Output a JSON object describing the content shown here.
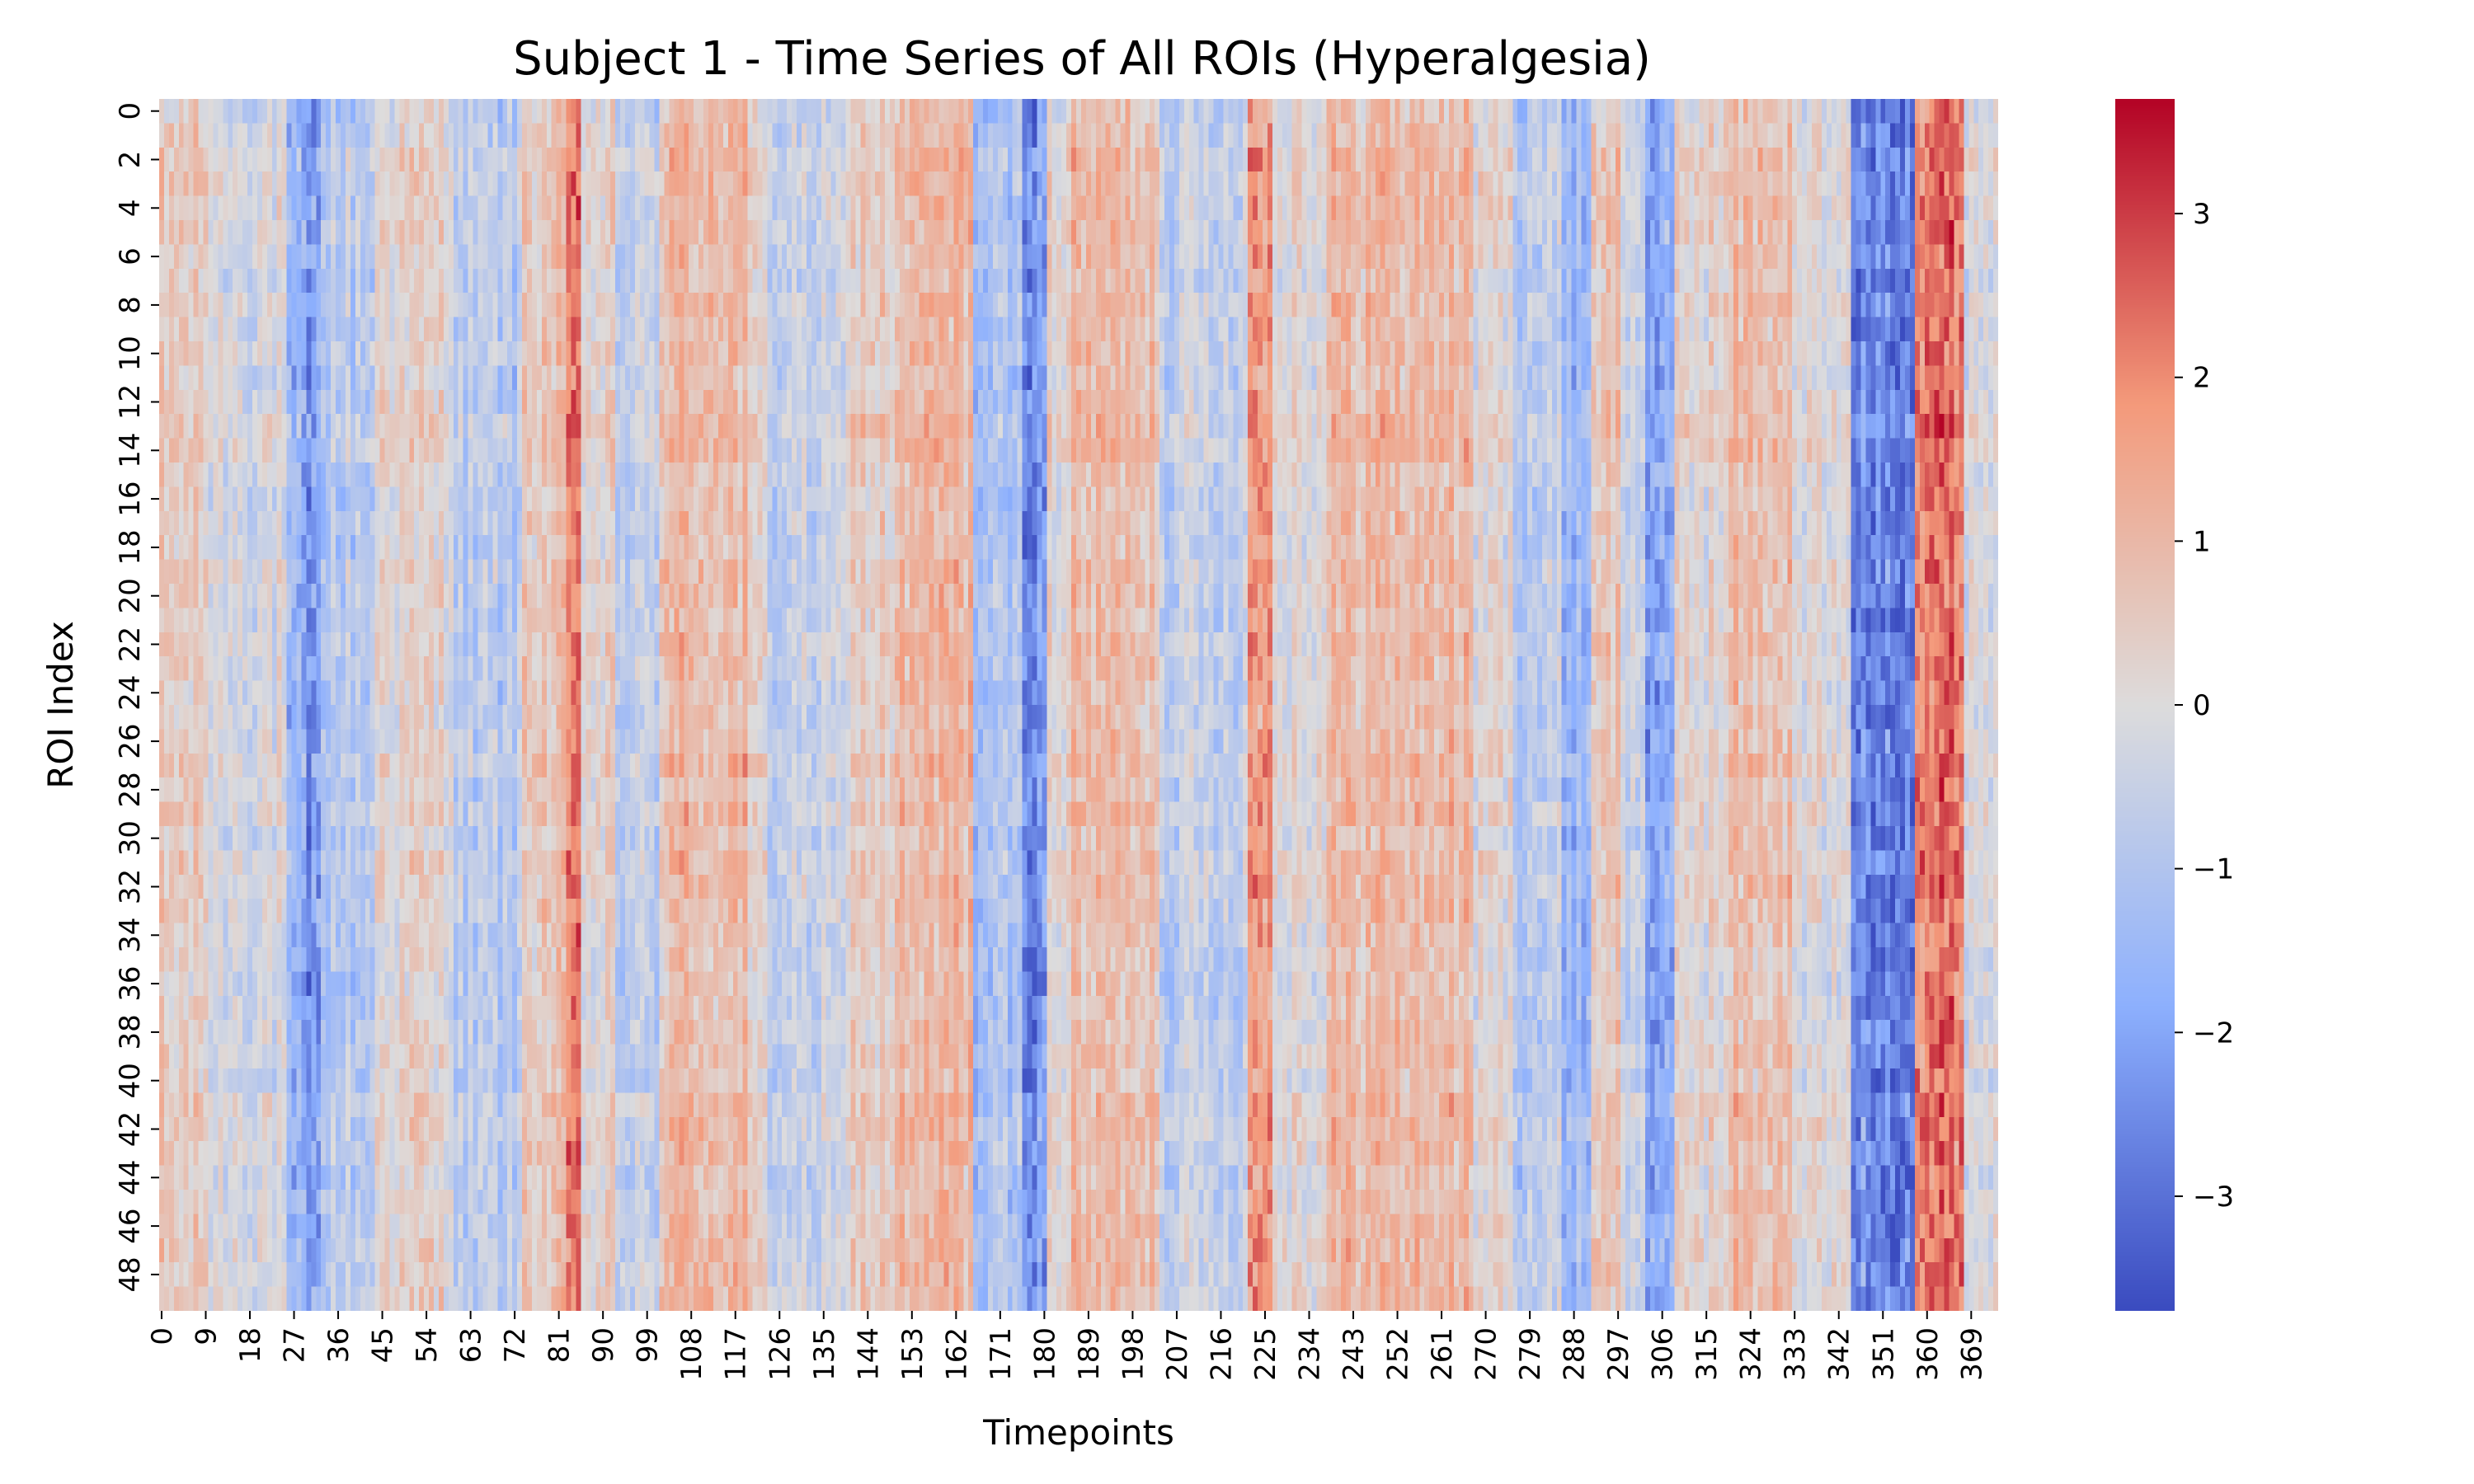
{
  "chart_data": {
    "type": "heatmap",
    "title": "Subject 1 - Time Series of All ROIs (Hyperalgesia)",
    "xlabel": "Timepoints",
    "ylabel": "ROI Index",
    "n_timepoints": 375,
    "n_rois": 50,
    "x_tick_labels": [
      "0",
      "9",
      "18",
      "27",
      "36",
      "45",
      "54",
      "63",
      "72",
      "81",
      "90",
      "99",
      "108",
      "117",
      "126",
      "135",
      "144",
      "153",
      "162",
      "171",
      "180",
      "189",
      "198",
      "207",
      "216",
      "225",
      "234",
      "243",
      "252",
      "261",
      "270",
      "279",
      "288",
      "297",
      "306",
      "315",
      "324",
      "333",
      "342",
      "351",
      "360",
      "369"
    ],
    "y_tick_labels": [
      "0",
      "2",
      "4",
      "6",
      "8",
      "10",
      "12",
      "14",
      "16",
      "18",
      "20",
      "22",
      "24",
      "26",
      "28",
      "30",
      "32",
      "34",
      "36",
      "38",
      "40",
      "42",
      "44",
      "46",
      "48"
    ],
    "colormap": "coolwarm",
    "colorbar": {
      "range": [
        -3.7,
        3.7
      ],
      "tick_values": [
        -3,
        -2,
        -1,
        0,
        1,
        2,
        3
      ],
      "tick_labels": [
        "−3",
        "−2",
        "−1",
        "0",
        "1",
        "2",
        "3"
      ]
    },
    "colors": {
      "low": "#3b4cc0",
      "mid": "#dddcdc",
      "high": "#b40426"
    },
    "mean_profile_segments": [
      {
        "t_start": 0,
        "t_end": 10,
        "value": 0.5
      },
      {
        "t_start": 10,
        "t_end": 26,
        "value": -0.1
      },
      {
        "t_start": 26,
        "t_end": 29,
        "value": -1.8
      },
      {
        "t_start": 29,
        "t_end": 33,
        "value": -2.3
      },
      {
        "t_start": 33,
        "t_end": 44,
        "value": -0.8
      },
      {
        "t_start": 44,
        "t_end": 60,
        "value": 0.3
      },
      {
        "t_start": 60,
        "t_end": 74,
        "value": -0.8
      },
      {
        "t_start": 74,
        "t_end": 83,
        "value": 0.7
      },
      {
        "t_start": 83,
        "t_end": 86,
        "value": 2.1
      },
      {
        "t_start": 86,
        "t_end": 93,
        "value": 0.2
      },
      {
        "t_start": 93,
        "t_end": 102,
        "value": -0.6
      },
      {
        "t_start": 102,
        "t_end": 120,
        "value": 1.0
      },
      {
        "t_start": 120,
        "t_end": 124,
        "value": 0.1
      },
      {
        "t_start": 124,
        "t_end": 140,
        "value": -0.5
      },
      {
        "t_start": 140,
        "t_end": 150,
        "value": 0.5
      },
      {
        "t_start": 150,
        "t_end": 158,
        "value": 0.9
      },
      {
        "t_start": 158,
        "t_end": 166,
        "value": 1.1
      },
      {
        "t_start": 166,
        "t_end": 176,
        "value": -1.2
      },
      {
        "t_start": 176,
        "t_end": 181,
        "value": -2.2
      },
      {
        "t_start": 181,
        "t_end": 186,
        "value": 0.3
      },
      {
        "t_start": 186,
        "t_end": 204,
        "value": 0.9
      },
      {
        "t_start": 204,
        "t_end": 222,
        "value": -0.5
      },
      {
        "t_start": 222,
        "t_end": 227,
        "value": 1.8
      },
      {
        "t_start": 227,
        "t_end": 238,
        "value": 0.2
      },
      {
        "t_start": 238,
        "t_end": 268,
        "value": 1.0
      },
      {
        "t_start": 268,
        "t_end": 276,
        "value": 0.1
      },
      {
        "t_start": 276,
        "t_end": 286,
        "value": -0.7
      },
      {
        "t_start": 286,
        "t_end": 292,
        "value": -1.4
      },
      {
        "t_start": 292,
        "t_end": 298,
        "value": 0.7
      },
      {
        "t_start": 298,
        "t_end": 303,
        "value": -0.4
      },
      {
        "t_start": 303,
        "t_end": 309,
        "value": -2.0
      },
      {
        "t_start": 309,
        "t_end": 320,
        "value": 0.3
      },
      {
        "t_start": 320,
        "t_end": 333,
        "value": 0.9
      },
      {
        "t_start": 333,
        "t_end": 345,
        "value": 0.0
      },
      {
        "t_start": 345,
        "t_end": 358,
        "value": -2.6
      },
      {
        "t_start": 358,
        "t_end": 368,
        "value": 2.3
      },
      {
        "t_start": 368,
        "t_end": 375,
        "value": 0.0
      }
    ]
  }
}
